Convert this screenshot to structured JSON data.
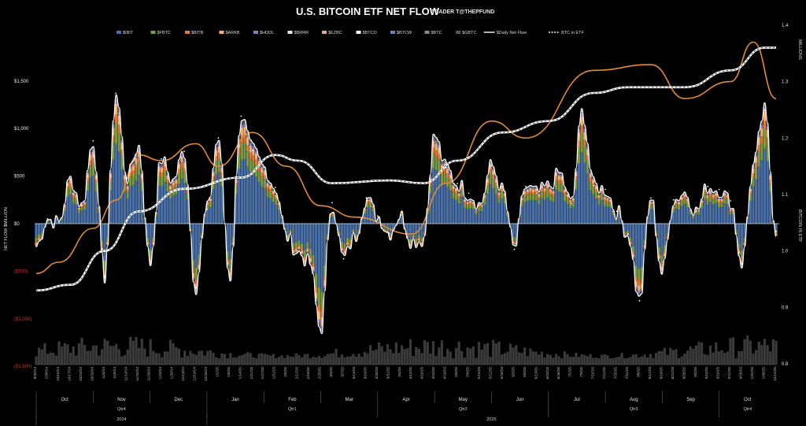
{
  "chart_data": {
    "type": "bar",
    "title": "U.S. BITCOIN ETF NET FLOW",
    "subtitle": "TRADER T@THEPFUND",
    "ylabel": "NET FLOW $MILLION",
    "y2label": "BITCOIN IN ETF",
    "y2unit": "MILLIONS",
    "ylim": [
      -2500,
      1700
    ],
    "y2lim": [
      0.8,
      1.4
    ],
    "yticks": [
      "$1,500",
      "$1,000",
      "$500",
      "$0",
      "($500)",
      "($1,000)",
      "($1,500)"
    ],
    "yticks_values": [
      1500,
      1000,
      500,
      0,
      -500,
      -1000,
      -1500
    ],
    "y2ticks": [
      "1.4",
      "1.3",
      "1.2",
      "1.1",
      "1.0",
      "0.9",
      "0.8"
    ],
    "y2ticks_values": [
      1.4,
      1.3,
      1.2,
      1.1,
      1.0,
      0.9,
      0.8
    ],
    "legend": [
      {
        "name": "$IBIT",
        "color": "#4a6fa5",
        "kind": "box"
      },
      {
        "name": "$FBTC",
        "color": "#7a9a46",
        "kind": "box"
      },
      {
        "name": "$BITB",
        "color": "#e07b39",
        "kind": "box"
      },
      {
        "name": "$ARKB",
        "color": "#f0b27a",
        "kind": "box"
      },
      {
        "name": "$HODL",
        "color": "#8e7cc3",
        "kind": "box"
      },
      {
        "name": "$BRRR",
        "color": "#e8e8e8",
        "kind": "box"
      },
      {
        "name": "$EZBC",
        "color": "#e8a0a0",
        "kind": "box"
      },
      {
        "name": "$BTCO",
        "color": "#ffffff",
        "kind": "box"
      },
      {
        "name": "$BTCW",
        "color": "#6f86b5",
        "kind": "box"
      },
      {
        "name": "$BTC",
        "color": "#8a8a8a",
        "kind": "box"
      },
      {
        "name": "$GBTC",
        "color": "#5a5a5a",
        "kind": "box"
      },
      {
        "name": "$Daily Net Flow",
        "color": "#ffffff",
        "kind": "line"
      },
      {
        "name": "BTC in ETF",
        "color": "#ffffff",
        "kind": "dashed"
      }
    ],
    "months": [
      {
        "label": "Oct",
        "quarter": "Qtr4",
        "year": "2024"
      },
      {
        "label": "Nov",
        "quarter": "Qtr4",
        "year": "2024"
      },
      {
        "label": "Dec",
        "quarter": "Qtr4",
        "year": "2024"
      },
      {
        "label": "Jan",
        "quarter": "Qtr1",
        "year": "2025"
      },
      {
        "label": "Feb",
        "quarter": "Qtr1",
        "year": "2025"
      },
      {
        "label": "Mar",
        "quarter": "Qtr1",
        "year": "2025"
      },
      {
        "label": "Apr",
        "quarter": "Qtr2",
        "year": "2025"
      },
      {
        "label": "May",
        "quarter": "Qtr2",
        "year": "2025"
      },
      {
        "label": "Jun",
        "quarter": "Qtr2",
        "year": "2025"
      },
      {
        "label": "Jul",
        "quarter": "Qtr3",
        "year": "2025"
      },
      {
        "label": "Aug",
        "quarter": "Qtr3",
        "year": "2025"
      },
      {
        "label": "Sep",
        "quarter": "Qtr3",
        "year": "2025"
      },
      {
        "label": "Oct",
        "quarter": "Qtr4",
        "year": "2025"
      }
    ],
    "quarters": [
      "Qtr4",
      "Qtr1",
      "Qtr2",
      "Qtr3",
      "Qtr4"
    ],
    "years": [
      "2024",
      "2025"
    ],
    "dates": [
      "9/30/24",
      "10/4/24",
      "10/10/24",
      "10/17/24",
      "10/23/24",
      "10/29/24",
      "11/4/24",
      "11/8/24",
      "11/14/24",
      "11/20/24",
      "11/26/24",
      "12/3/24",
      "12/9/24",
      "12/13/24",
      "12/19/24",
      "12/26/24",
      "1/2/25",
      "1/8/25",
      "1/14/25",
      "1/21/25",
      "1/27/25",
      "1/31/25",
      "2/6/25",
      "2/12/25",
      "2/19/25",
      "2/25/25",
      "3/3/25",
      "3/7/25",
      "3/13/25",
      "3/19/25",
      "3/25/25",
      "3/31/25",
      "4/4/25",
      "4/10/25",
      "4/16/25",
      "4/23/25",
      "4/29/25",
      "5/5/25",
      "5/9/25",
      "5/15/25",
      "5/21/25",
      "5/28/25",
      "6/3/25",
      "6/9/25",
      "6/13/25",
      "6/20/25",
      "6/26/25",
      "7/2/25",
      "7/9/25",
      "7/15/25",
      "7/21/25",
      "7/25/25",
      "7/31/25",
      "8/6/25",
      "8/12/25",
      "8/18/25",
      "8/22/25",
      "8/28/25",
      "9/4/25",
      "9/10/25",
      "9/16/25",
      "9/22/25",
      "9/26/25",
      "10/2/25",
      "10/8/25",
      "10/14/25"
    ],
    "net_flow_key_points": [
      {
        "date": "9/30/24",
        "value": -240
      },
      {
        "date": "10/4/24",
        "value": 50
      },
      {
        "date": "10/10/24",
        "value": 10
      },
      {
        "date": "10/17/24",
        "value": 470
      },
      {
        "date": "10/23/24",
        "value": 190
      },
      {
        "date": "10/29/24",
        "value": 870
      },
      {
        "date": "11/4/24",
        "value": -560
      },
      {
        "date": "11/8/24",
        "value": 1370
      },
      {
        "date": "11/14/24",
        "value": 480
      },
      {
        "date": "11/20/24",
        "value": 820
      },
      {
        "date": "11/26/24",
        "value": -420
      },
      {
        "date": "12/3/24",
        "value": 680
      },
      {
        "date": "12/9/24",
        "value": 450
      },
      {
        "date": "12/13/24",
        "value": 760
      },
      {
        "date": "12/19/24",
        "value": -670
      },
      {
        "date": "12/26/24",
        "value": 150
      },
      {
        "date": "1/2/25",
        "value": 900
      },
      {
        "date": "1/8/25",
        "value": -580
      },
      {
        "date": "1/14/25",
        "value": 1130
      },
      {
        "date": "1/21/25",
        "value": 770
      },
      {
        "date": "1/27/25",
        "value": 590
      },
      {
        "date": "1/31/25",
        "value": 380
      },
      {
        "date": "2/6/25",
        "value": -140
      },
      {
        "date": "2/12/25",
        "value": -300
      },
      {
        "date": "2/19/25",
        "value": -410
      },
      {
        "date": "2/25/25",
        "value": -1120
      },
      {
        "date": "3/3/25",
        "value": 220
      },
      {
        "date": "3/7/25",
        "value": -370
      },
      {
        "date": "3/13/25",
        "value": -140
      },
      {
        "date": "3/19/25",
        "value": 270
      },
      {
        "date": "3/25/25",
        "value": 80
      },
      {
        "date": "3/31/25",
        "value": -100
      },
      {
        "date": "4/4/25",
        "value": 90
      },
      {
        "date": "4/10/25",
        "value": -180
      },
      {
        "date": "4/16/25",
        "value": -170
      },
      {
        "date": "4/23/25",
        "value": 930
      },
      {
        "date": "4/29/25",
        "value": 590
      },
      {
        "date": "5/5/25",
        "value": 420
      },
      {
        "date": "5/9/25",
        "value": 320
      },
      {
        "date": "5/15/25",
        "value": 200
      },
      {
        "date": "5/21/25",
        "value": 610
      },
      {
        "date": "5/28/25",
        "value": 350
      },
      {
        "date": "6/3/25",
        "value": -270
      },
      {
        "date": "6/9/25",
        "value": 390
      },
      {
        "date": "6/13/25",
        "value": 320
      },
      {
        "date": "6/20/25",
        "value": 390
      },
      {
        "date": "6/26/25",
        "value": 530
      },
      {
        "date": "7/2/25",
        "value": 210
      },
      {
        "date": "7/9/25",
        "value": 1180
      },
      {
        "date": "7/15/25",
        "value": 400
      },
      {
        "date": "7/21/25",
        "value": 360
      },
      {
        "date": "7/25/25",
        "value": 130
      },
      {
        "date": "7/31/25",
        "value": -110
      },
      {
        "date": "8/6/25",
        "value": -810
      },
      {
        "date": "8/12/25",
        "value": 270
      },
      {
        "date": "8/18/25",
        "value": -520
      },
      {
        "date": "8/22/25",
        "value": 250
      },
      {
        "date": "8/28/25",
        "value": 330
      },
      {
        "date": "9/4/25",
        "value": 130
      },
      {
        "date": "9/10/25",
        "value": 390
      },
      {
        "date": "9/16/25",
        "value": 360
      },
      {
        "date": "9/22/25",
        "value": 240
      },
      {
        "date": "9/26/25",
        "value": -420
      },
      {
        "date": "10/2/25",
        "value": 600
      },
      {
        "date": "10/8/25",
        "value": 1190
      },
      {
        "date": "10/14/25",
        "value": -80
      }
    ],
    "btc_in_etf_key_points": [
      {
        "date": "9/30/24",
        "value": 0.93
      },
      {
        "date": "10/17/24",
        "value": 0.94
      },
      {
        "date": "11/4/24",
        "value": 1.0
      },
      {
        "date": "11/20/24",
        "value": 1.07
      },
      {
        "date": "12/13/24",
        "value": 1.11
      },
      {
        "date": "1/14/25",
        "value": 1.13
      },
      {
        "date": "1/31/25",
        "value": 1.17
      },
      {
        "date": "2/12/25",
        "value": 1.16
      },
      {
        "date": "3/3/25",
        "value": 1.12
      },
      {
        "date": "3/31/25",
        "value": 1.125
      },
      {
        "date": "4/16/25",
        "value": 1.12
      },
      {
        "date": "5/5/25",
        "value": 1.16
      },
      {
        "date": "5/28/25",
        "value": 1.21
      },
      {
        "date": "6/20/25",
        "value": 1.23
      },
      {
        "date": "7/15/25",
        "value": 1.28
      },
      {
        "date": "7/31/25",
        "value": 1.29
      },
      {
        "date": "8/28/25",
        "value": 1.29
      },
      {
        "date": "9/22/25",
        "value": 1.32
      },
      {
        "date": "10/8/25",
        "value": 1.36
      },
      {
        "date": "10/14/25",
        "value": 1.36
      }
    ],
    "btc_price_key_points": [
      {
        "date": "9/30/24",
        "value": 0.96
      },
      {
        "date": "10/10/24",
        "value": 0.98
      },
      {
        "date": "10/29/24",
        "value": 1.04
      },
      {
        "date": "11/8/24",
        "value": 1.09
      },
      {
        "date": "11/20/24",
        "value": 1.17
      },
      {
        "date": "12/3/24",
        "value": 1.16
      },
      {
        "date": "12/19/24",
        "value": 1.19
      },
      {
        "date": "1/2/25",
        "value": 1.15
      },
      {
        "date": "1/21/25",
        "value": 1.21
      },
      {
        "date": "2/6/25",
        "value": 1.15
      },
      {
        "date": "2/25/25",
        "value": 1.08
      },
      {
        "date": "3/13/25",
        "value": 1.06
      },
      {
        "date": "4/10/25",
        "value": 1.03
      },
      {
        "date": "4/29/25",
        "value": 1.12
      },
      {
        "date": "5/21/25",
        "value": 1.23
      },
      {
        "date": "6/9/25",
        "value": 1.2
      },
      {
        "date": "7/15/25",
        "value": 1.32
      },
      {
        "date": "8/12/25",
        "value": 1.33
      },
      {
        "date": "8/28/25",
        "value": 1.27
      },
      {
        "date": "9/22/25",
        "value": 1.3
      },
      {
        "date": "10/2/25",
        "value": 1.37
      },
      {
        "date": "10/14/25",
        "value": 1.27
      }
    ],
    "grid": false,
    "legend_position": "top"
  }
}
